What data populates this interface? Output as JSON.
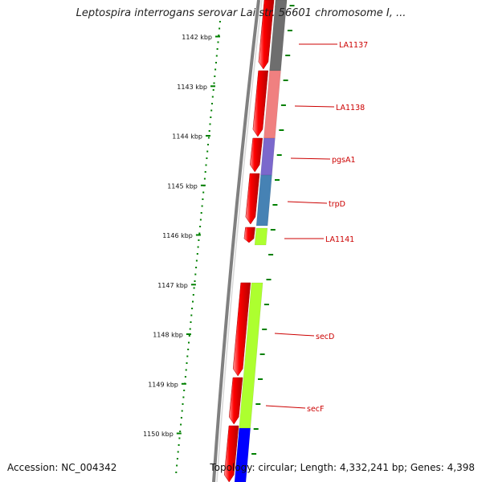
{
  "title": "Leptospira interrogans serovar Lai str. 56601 chromosome I, ...",
  "accession_label": "Accession: NC_004342",
  "info_label": "Topology: circular; Length: 4,332,241 bp; Genes: 4,398",
  "colors": {
    "forward_cds": "#ff0000",
    "ruler_tick": "#008000",
    "backbone": "#808080",
    "label": "#cc0000"
  },
  "ruler": {
    "labels": [
      "1142 kbp",
      "1143 kbp",
      "1144 kbp",
      "1145 kbp",
      "1146 kbp",
      "1147 kbp",
      "1148 kbp",
      "1149 kbp",
      "1150 kbp"
    ]
  },
  "genes": [
    {
      "name": "LA1137",
      "color": "#6e6e6e"
    },
    {
      "name": "LA1138",
      "color": "#f08080"
    },
    {
      "name": "pgsA1",
      "color": "#7b68cc"
    },
    {
      "name": "trpD",
      "color": "#4682b4"
    },
    {
      "name": "LA1141",
      "color": "#adff2f"
    },
    {
      "name": "secD",
      "color": "#adff2f"
    },
    {
      "name": "secF",
      "color": "#adff2f"
    },
    {
      "name": "",
      "color": "#0000ff"
    }
  ]
}
